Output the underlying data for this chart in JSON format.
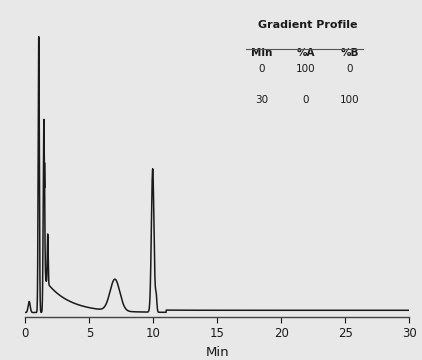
{
  "xlabel": "Min",
  "xlim": [
    0,
    30
  ],
  "ylim": [
    -0.015,
    1.05
  ],
  "xticks": [
    0,
    5,
    10,
    15,
    20,
    25,
    30
  ],
  "background_color": "#e8e8e8",
  "line_color": "#1a1a1a",
  "line_width": 1.1,
  "table_title": "Gradient Profile",
  "table_headers": [
    "Min",
    "%A",
    "%B"
  ],
  "table_rows": [
    [
      "0",
      "100",
      "0"
    ],
    [
      "30",
      "0",
      "100"
    ]
  ]
}
